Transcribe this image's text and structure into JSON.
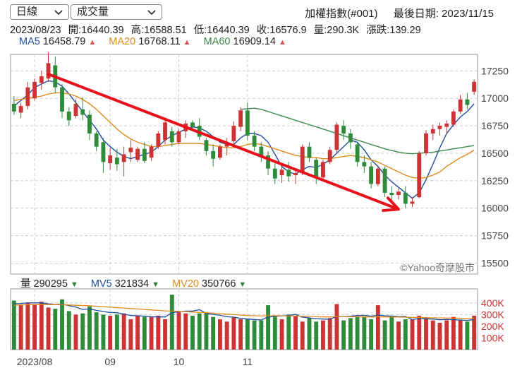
{
  "selectors": {
    "period": "日線",
    "indicator": "成交量"
  },
  "header": {
    "index_name": "加權指數(#001)",
    "last_date_label": "最後日期: 2023/11/15"
  },
  "quote": {
    "date": "2023/08/23",
    "open": "開:16440.39",
    "high": "高:16588.51",
    "low": "低:16440.39",
    "close": "收:16576.9",
    "volume": "量:290.3K",
    "change": "漲跌:139.29"
  },
  "ma_legend": [
    {
      "label": "MA5",
      "value": "16458.79",
      "color": "#1f4e9e",
      "dir": "up"
    },
    {
      "label": "MA20",
      "value": "16768.11",
      "color": "#e08a1e",
      "dir": "up"
    },
    {
      "label": "MA60",
      "value": "16909.14",
      "color": "#3a8a4a",
      "dir": "up"
    }
  ],
  "vol_legend": [
    {
      "label": "量",
      "value": "290295",
      "color": "#222222",
      "dir": "down"
    },
    {
      "label": "MV5",
      "value": "321834",
      "color": "#1f4e9e",
      "dir": "down"
    },
    {
      "label": "MV20",
      "value": "350766",
      "color": "#e08a1e",
      "dir": "down"
    }
  ],
  "watermark": "©Yahoo奇摩股市",
  "colors": {
    "up": "#cc3333",
    "down": "#2e8b3a",
    "ma5": "#1f4e9e",
    "ma20": "#e08a1e",
    "ma60": "#3a8a4a",
    "arrow": "#e8101a",
    "grid": "#cccccc"
  },
  "chart_data": [
    {
      "type": "candlestick",
      "title": "",
      "ylim": [
        15400,
        17400
      ],
      "yticks": [
        15500,
        15750,
        16000,
        16250,
        16500,
        16750,
        17000,
        17250
      ],
      "xticks": [
        "2023/08",
        "09",
        "10",
        "11"
      ],
      "xtick_index": [
        3,
        14,
        24,
        34
      ],
      "candles": [
        [
          16950,
          17020,
          16850,
          16880
        ],
        [
          16870,
          16960,
          16820,
          16930
        ],
        [
          16930,
          17150,
          16900,
          17100
        ],
        [
          17000,
          17180,
          16980,
          17150
        ],
        [
          17140,
          17250,
          17080,
          17200
        ],
        [
          17180,
          17420,
          17150,
          17320
        ],
        [
          17300,
          17380,
          17050,
          17100
        ],
        [
          17100,
          17130,
          16820,
          16880
        ],
        [
          16880,
          16920,
          16750,
          16800
        ],
        [
          16840,
          16990,
          16820,
          16950
        ],
        [
          16900,
          17010,
          16800,
          16850
        ],
        [
          16850,
          16890,
          16620,
          16680
        ],
        [
          16680,
          16700,
          16520,
          16560
        ],
        [
          16600,
          16640,
          16320,
          16420
        ],
        [
          16410,
          16550,
          16350,
          16480
        ],
        [
          16460,
          16540,
          16340,
          16400
        ],
        [
          16420,
          16560,
          16290,
          16490
        ],
        [
          16510,
          16620,
          16420,
          16550
        ],
        [
          16440,
          16560,
          16420,
          16540
        ],
        [
          16540,
          16600,
          16410,
          16430
        ],
        [
          16460,
          16580,
          16430,
          16560
        ],
        [
          16560,
          16700,
          16540,
          16680
        ],
        [
          16620,
          16820,
          16580,
          16780
        ],
        [
          16700,
          16740,
          16560,
          16600
        ],
        [
          16600,
          16720,
          16580,
          16700
        ],
        [
          16700,
          16800,
          16640,
          16770
        ],
        [
          16780,
          16800,
          16700,
          16740
        ],
        [
          16750,
          16820,
          16620,
          16650
        ],
        [
          16620,
          16640,
          16480,
          16520
        ],
        [
          16520,
          16580,
          16380,
          16450
        ],
        [
          16460,
          16580,
          16440,
          16560
        ],
        [
          16560,
          16640,
          16480,
          16600
        ],
        [
          16610,
          16790,
          16580,
          16750
        ],
        [
          16740,
          16920,
          16700,
          16890
        ],
        [
          16890,
          16960,
          16620,
          16660
        ],
        [
          16660,
          16700,
          16520,
          16560
        ],
        [
          16560,
          16600,
          16420,
          16480
        ],
        [
          16480,
          16520,
          16300,
          16360
        ],
        [
          16360,
          16420,
          16220,
          16270
        ],
        [
          16300,
          16400,
          16230,
          16350
        ],
        [
          16350,
          16420,
          16240,
          16290
        ],
        [
          16300,
          16360,
          16220,
          16320
        ],
        [
          16320,
          16580,
          16300,
          16560
        ],
        [
          16560,
          16600,
          16420,
          16460
        ],
        [
          16440,
          16460,
          16220,
          16280
        ],
        [
          16280,
          16440,
          16260,
          16420
        ],
        [
          16420,
          16560,
          16400,
          16530
        ],
        [
          16530,
          16780,
          16500,
          16760
        ],
        [
          16750,
          16800,
          16620,
          16680
        ],
        [
          16680,
          16720,
          16540,
          16600
        ],
        [
          16580,
          16600,
          16380,
          16420
        ],
        [
          16420,
          16480,
          16320,
          16380
        ],
        [
          16380,
          16420,
          16180,
          16220
        ],
        [
          16220,
          16390,
          16200,
          16360
        ],
        [
          16360,
          16380,
          16100,
          16140
        ],
        [
          16140,
          16200,
          16050,
          16120
        ],
        [
          16120,
          16180,
          16080,
          16150
        ],
        [
          16140,
          16200,
          16000,
          16040
        ],
        [
          16040,
          16100,
          16010,
          16060
        ],
        [
          16100,
          16520,
          16090,
          16500
        ],
        [
          16500,
          16710,
          16480,
          16680
        ],
        [
          16680,
          16760,
          16620,
          16720
        ],
        [
          16720,
          16780,
          16660,
          16750
        ],
        [
          16740,
          16800,
          16680,
          16770
        ],
        [
          16760,
          16900,
          16740,
          16880
        ],
        [
          16880,
          17030,
          16860,
          16990
        ],
        [
          16990,
          17050,
          16900,
          16940
        ],
        [
          17060,
          17170,
          17030,
          17150
        ]
      ],
      "ma5": [
        16930,
        16980,
        17030,
        17100,
        17130,
        17160,
        17150,
        17110,
        17040,
        16960,
        16880,
        16800,
        16720,
        16620,
        16560,
        16510,
        16470,
        16450,
        16470,
        16490,
        16510,
        16560,
        16620,
        16660,
        16690,
        16720,
        16740,
        16730,
        16700,
        16650,
        16600,
        16580,
        16580,
        16640,
        16680,
        16680,
        16660,
        16600,
        16490,
        16380,
        16330,
        16310,
        16350,
        16380,
        16370,
        16400,
        16440,
        16500,
        16560,
        16620,
        16600,
        16530,
        16440,
        16380,
        16300,
        16240,
        16190,
        16140,
        16090,
        16140,
        16260,
        16400,
        16550,
        16680,
        16760,
        16830,
        16880,
        16950
      ],
      "ma20": [
        16980,
        16990,
        17000,
        17010,
        17020,
        17040,
        17050,
        17050,
        17040,
        17020,
        16990,
        16950,
        16900,
        16840,
        16780,
        16720,
        16670,
        16630,
        16600,
        16580,
        16560,
        16560,
        16570,
        16580,
        16590,
        16590,
        16590,
        16590,
        16580,
        16570,
        16560,
        16550,
        16550,
        16560,
        16580,
        16590,
        16580,
        16560,
        16540,
        16520,
        16500,
        16480,
        16470,
        16460,
        16460,
        16450,
        16450,
        16460,
        16470,
        16480,
        16470,
        16460,
        16440,
        16420,
        16390,
        16360,
        16330,
        16300,
        16280,
        16270,
        16280,
        16300,
        16330,
        16380,
        16420,
        16460,
        16490,
        16530
      ],
      "ma60": [
        null,
        null,
        null,
        null,
        null,
        null,
        null,
        null,
        null,
        null,
        null,
        null,
        null,
        null,
        null,
        null,
        null,
        null,
        null,
        null,
        null,
        null,
        null,
        null,
        null,
        null,
        null,
        null,
        null,
        null,
        null,
        null,
        null,
        16900,
        16905,
        16910,
        16900,
        16880,
        16860,
        16840,
        16820,
        16800,
        16780,
        16760,
        16740,
        16720,
        16700,
        16680,
        16660,
        16640,
        16620,
        16600,
        16580,
        16560,
        16540,
        16525,
        16510,
        16500,
        16495,
        16500,
        16505,
        16510,
        16520,
        16530,
        16540,
        16550,
        16560,
        16570
      ],
      "annotation": {
        "type": "arrow",
        "from": [
          5,
          17220
        ],
        "to": [
          56,
          15990
        ]
      }
    },
    {
      "type": "bar",
      "title": "",
      "ylim": [
        0,
        520000
      ],
      "yticks": [
        100000,
        200000,
        300000,
        400000
      ],
      "ytick_labels": [
        "100K",
        "200K",
        "300K",
        "400K"
      ],
      "volume": [
        420000,
        380000,
        400000,
        390000,
        410000,
        360000,
        350000,
        430000,
        330000,
        300000,
        310000,
        370000,
        320000,
        300000,
        290000,
        300000,
        310000,
        260000,
        290000,
        280000,
        280000,
        290000,
        260000,
        470000,
        320000,
        310000,
        290000,
        310000,
        320000,
        280000,
        260000,
        240000,
        280000,
        260000,
        260000,
        250000,
        250000,
        380000,
        290000,
        260000,
        300000,
        290000,
        240000,
        270000,
        240000,
        250000,
        270000,
        390000,
        250000,
        270000,
        280000,
        280000,
        260000,
        380000,
        250000,
        280000,
        240000,
        260000,
        260000,
        290000,
        270000,
        250000,
        230000,
        250000,
        280000,
        250000,
        240000,
        290000
      ],
      "mv5": [
        390000,
        395000,
        400000,
        400000,
        400000,
        392000,
        386000,
        390000,
        376000,
        364000,
        344000,
        348000,
        336000,
        326000,
        318000,
        316000,
        304000,
        292000,
        290000,
        286000,
        282000,
        280000,
        280000,
        316000,
        324000,
        330000,
        330000,
        342000,
        310000,
        302000,
        294000,
        282000,
        278000,
        268000,
        262000,
        258000,
        254000,
        278000,
        286000,
        288000,
        294000,
        302000,
        278000,
        272000,
        264000,
        262000,
        260000,
        284000,
        282000,
        286000,
        292000,
        294000,
        286000,
        296000,
        290000,
        288000,
        282000,
        284000,
        258000,
        266000,
        264000,
        262000,
        256000,
        258000,
        256000,
        254000,
        250000,
        258000
      ],
      "mv20": [
        380000,
        382000,
        384000,
        385000,
        386000,
        386000,
        385000,
        384000,
        382000,
        380000,
        378000,
        376000,
        372000,
        368000,
        364000,
        360000,
        356000,
        352000,
        348000,
        344000,
        340000,
        336000,
        332000,
        330000,
        328000,
        326000,
        322000,
        318000,
        316000,
        312000,
        308000,
        304000,
        300000,
        296000,
        292000,
        290000,
        288000,
        290000,
        290000,
        290000,
        288000,
        288000,
        286000,
        284000,
        282000,
        280000,
        280000,
        282000,
        282000,
        282000,
        282000,
        280000,
        280000,
        282000,
        280000,
        280000,
        278000,
        278000,
        276000,
        276000,
        274000,
        272000,
        272000,
        270000,
        270000,
        268000,
        266000,
        264000
      ]
    }
  ]
}
